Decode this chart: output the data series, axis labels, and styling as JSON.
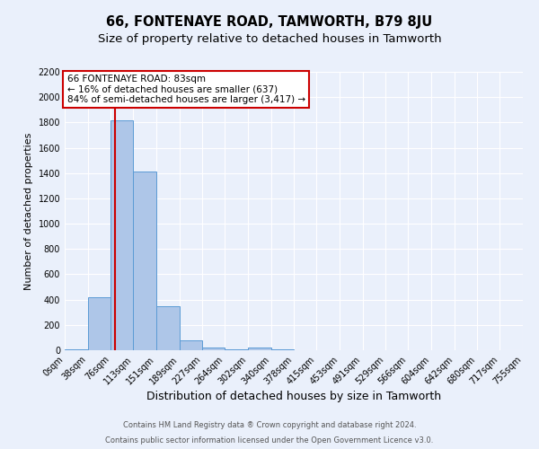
{
  "title": "66, FONTENAYE ROAD, TAMWORTH, B79 8JU",
  "subtitle": "Size of property relative to detached houses in Tamworth",
  "xlabel": "Distribution of detached houses by size in Tamworth",
  "ylabel": "Number of detached properties",
  "footnote1": "Contains HM Land Registry data ® Crown copyright and database right 2024.",
  "footnote2": "Contains public sector information licensed under the Open Government Licence v3.0.",
  "annotation_line1": "66 FONTENAYE ROAD: 83sqm",
  "annotation_line2": "← 16% of detached houses are smaller (637)",
  "annotation_line3": "84% of semi-detached houses are larger (3,417) →",
  "property_size": 83,
  "bar_edges": [
    0,
    38,
    76,
    113,
    151,
    189,
    227,
    264,
    302,
    340,
    378,
    415,
    453,
    491,
    529,
    566,
    604,
    642,
    680,
    717,
    755
  ],
  "bar_heights": [
    10,
    420,
    1820,
    1415,
    350,
    75,
    22,
    10,
    20,
    5,
    0,
    0,
    0,
    0,
    0,
    0,
    0,
    0,
    0,
    0
  ],
  "bar_color": "#aec6e8",
  "bar_edge_color": "#5b9bd5",
  "vline_color": "#cc0000",
  "vline_x": 83,
  "ylim": [
    0,
    2200
  ],
  "yticks": [
    0,
    200,
    400,
    600,
    800,
    1000,
    1200,
    1400,
    1600,
    1800,
    2000,
    2200
  ],
  "bg_color": "#eaf0fb",
  "grid_color": "#ffffff",
  "annotation_box_color": "#ffffff",
  "annotation_box_edge": "#cc0000",
  "title_fontsize": 10.5,
  "subtitle_fontsize": 9.5,
  "xlabel_fontsize": 9,
  "ylabel_fontsize": 8,
  "tick_fontsize": 7,
  "annotation_fontsize": 7.5
}
